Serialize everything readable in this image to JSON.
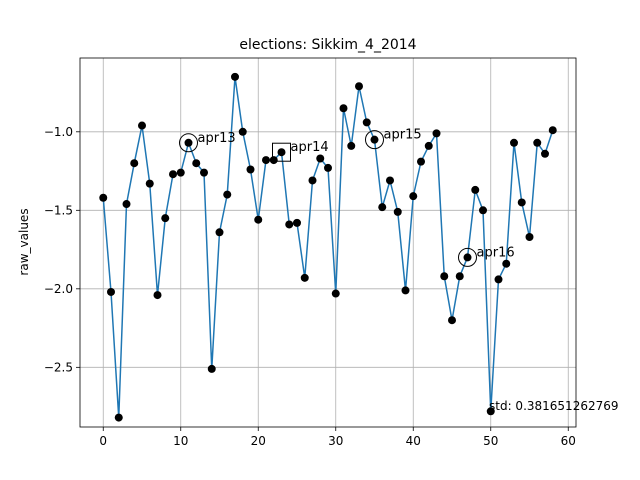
{
  "chart_data": {
    "type": "line",
    "title": "elections: Sikkim_4_2014",
    "xlabel": "",
    "ylabel": "raw_values",
    "xlim": [
      -3,
      61
    ],
    "ylim": [
      -2.88,
      -0.53
    ],
    "grid": true,
    "x_ticks": [
      0,
      10,
      20,
      30,
      40,
      50,
      60
    ],
    "y_ticks": [
      -2.5,
      -2.0,
      -1.5,
      -1.0
    ],
    "y_tick_labels": [
      "−2.5",
      "−2.0",
      "−1.5",
      "−1.0"
    ],
    "line_color": "#1f77b4",
    "marker_color": "#000000",
    "series": [
      {
        "x": [
          0,
          1,
          2,
          3,
          4,
          5,
          6,
          7,
          8,
          9,
          10,
          11,
          12,
          13,
          14,
          15,
          16,
          17,
          18,
          19,
          20,
          21,
          22,
          23,
          24,
          25,
          26,
          27,
          28,
          29,
          30,
          31,
          32,
          33,
          34,
          35,
          36,
          37,
          38,
          39,
          40,
          41,
          42,
          43,
          44,
          45,
          46,
          47,
          48,
          49,
          50,
          51,
          52,
          53,
          54,
          55,
          56,
          57,
          58
        ],
        "values": [
          -1.42,
          -2.02,
          -2.82,
          -1.46,
          -1.2,
          -0.96,
          -1.33,
          -2.04,
          -1.55,
          -1.27,
          -1.26,
          -1.07,
          -1.2,
          -1.26,
          -2.51,
          -1.64,
          -1.4,
          -0.65,
          -1.0,
          -1.24,
          -1.56,
          -1.18,
          -1.18,
          -1.13,
          -1.59,
          -1.58,
          -1.93,
          -1.31,
          -1.17,
          -1.23,
          -2.03,
          -0.85,
          -1.09,
          -0.71,
          -0.94,
          -1.05,
          -1.48,
          -1.31,
          -1.51,
          -2.01,
          -1.41,
          -1.19,
          -1.09,
          -1.01,
          -1.92,
          -2.2,
          -1.92,
          -1.8,
          -1.37,
          -1.5,
          -2.78,
          -1.94,
          -1.84,
          -1.07,
          -1.45,
          -1.67,
          -1.07,
          -1.14,
          -0.99
        ]
      }
    ],
    "annotations": [
      {
        "label": "apr13",
        "x": 11,
        "y": -1.07,
        "marker": "circle"
      },
      {
        "label": "apr14",
        "x": 23,
        "y": -1.13,
        "marker": "square"
      },
      {
        "label": "apr15",
        "x": 35,
        "y": -1.05,
        "marker": "circle"
      },
      {
        "label": "apr16",
        "x": 47,
        "y": -1.8,
        "marker": "circle"
      }
    ],
    "std_text": "std: 0.381651262769"
  }
}
